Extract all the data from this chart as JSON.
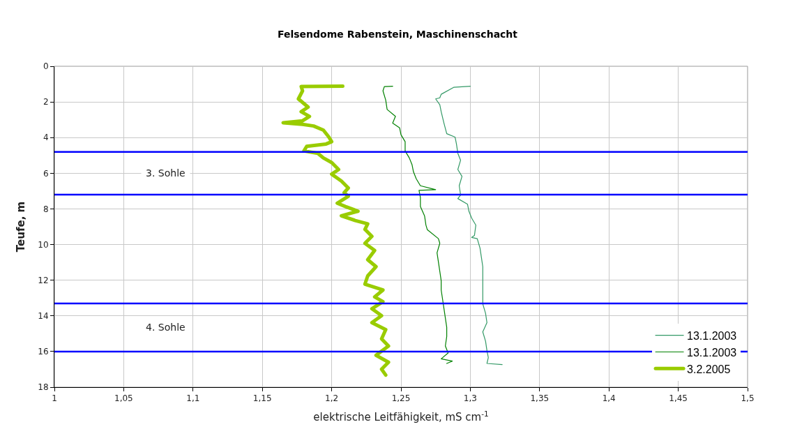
{
  "chart_data": {
    "type": "line",
    "title": "Felsendome Rabenstein, Maschinenschacht",
    "xlabel": "elektrische Leitfähigkeit, mS cm$^{-1}$",
    "ylabel": "Teufe, m",
    "xlim": [
      1,
      1.5
    ],
    "xticks": [
      1,
      {
        "value": 1.05,
        "label": "1,05"
      },
      {
        "value": 1.1,
        "label": "1,1"
      },
      {
        "value": 1.15,
        "label": "1,15"
      },
      {
        "value": 1.2,
        "label": "1,2"
      },
      {
        "value": 1.25,
        "label": "1,25"
      },
      {
        "value": 1.3,
        "label": "1,3"
      },
      {
        "value": 1.35,
        "label": "1,35"
      },
      {
        "value": 1.4,
        "label": "1,4"
      },
      {
        "value": 1.45,
        "label": "1,45"
      },
      {
        "value": 1.5,
        "label": "1,5"
      }
    ],
    "ylim": [
      18,
      0
    ],
    "yticks": [
      0,
      2,
      4,
      6,
      8,
      10,
      12,
      14,
      16,
      18
    ],
    "grid": true,
    "legend": "bottom right",
    "marker": "none",
    "line_style": "solid",
    "series": [
      {
        "name": "13.1.2003",
        "color": "#339966",
        "x": [
          1.3,
          1.288,
          1.279,
          1.278,
          1.275,
          1.278,
          1.279,
          1.281,
          1.283,
          1.289,
          1.29,
          1.291,
          1.293,
          1.291,
          1.294,
          1.292,
          1.293,
          1.291,
          1.298,
          1.299,
          1.301,
          1.304,
          1.303,
          1.301,
          1.305,
          1.307,
          1.308,
          1.309,
          1.309,
          1.309,
          1.309,
          1.309,
          1.311,
          1.312,
          1.309,
          1.311,
          1.312,
          1.313,
          1.312,
          1.323
        ],
        "values": [
          1.12,
          1.18,
          1.57,
          1.77,
          1.83,
          2.16,
          2.55,
          3.19,
          3.78,
          3.97,
          4.36,
          4.88,
          5.27,
          5.79,
          6.18,
          6.7,
          7.22,
          7.42,
          7.74,
          8.13,
          8.52,
          8.91,
          9.49,
          9.6,
          9.67,
          10.2,
          10.72,
          11.24,
          11.76,
          12.29,
          12.81,
          13.33,
          13.86,
          14.38,
          14.9,
          15.42,
          15.95,
          16.34,
          16.67,
          16.73
        ]
      },
      {
        "name": "13.1.2003",
        "color": "#008000",
        "x": [
          1.244,
          1.238,
          1.237,
          1.239,
          1.24,
          1.246,
          1.244,
          1.249,
          1.25,
          1.253,
          1.253,
          1.256,
          1.258,
          1.259,
          1.261,
          1.264,
          1.275,
          1.263,
          1.264,
          1.264,
          1.267,
          1.268,
          1.269,
          1.277,
          1.278,
          1.276,
          1.277,
          1.278,
          1.279,
          1.279,
          1.28,
          1.281,
          1.282,
          1.283,
          1.283,
          1.282,
          1.284,
          1.279,
          1.287,
          1.283
        ],
        "values": [
          1.12,
          1.14,
          1.38,
          1.9,
          2.42,
          2.81,
          3.19,
          3.45,
          3.84,
          4.23,
          4.75,
          5.14,
          5.53,
          5.92,
          6.31,
          6.7,
          6.92,
          6.96,
          7.35,
          7.87,
          8.39,
          8.91,
          9.17,
          9.67,
          9.93,
          10.46,
          10.98,
          11.5,
          12.03,
          12.55,
          13.07,
          13.59,
          14.12,
          14.64,
          15.16,
          15.69,
          16.08,
          16.41,
          16.54,
          16.67
        ]
      },
      {
        "name": "3.2.2005",
        "color": "#99cc00",
        "x": [
          1.208,
          1.178,
          1.179,
          1.176,
          1.183,
          1.178,
          1.184,
          1.179,
          1.165,
          1.179,
          1.187,
          1.194,
          1.198,
          1.2,
          1.196,
          1.182,
          1.18,
          1.19,
          1.194,
          1.2,
          1.205,
          1.2,
          1.207,
          1.212,
          1.209,
          1.212,
          1.204,
          1.21,
          1.219,
          1.207,
          1.217,
          1.226,
          1.224,
          1.229,
          1.224,
          1.231,
          1.226,
          1.232,
          1.226,
          1.224,
          1.237,
          1.231,
          1.237,
          1.229,
          1.236,
          1.229,
          1.239,
          1.236,
          1.241,
          1.232,
          1.241,
          1.236,
          1.239
        ],
        "values": [
          1.12,
          1.13,
          1.38,
          1.83,
          2.29,
          2.55,
          2.81,
          3.06,
          3.17,
          3.26,
          3.35,
          3.58,
          3.97,
          4.23,
          4.36,
          4.49,
          4.75,
          4.88,
          5.14,
          5.4,
          5.79,
          6.05,
          6.44,
          6.83,
          7.09,
          7.29,
          7.68,
          7.87,
          8.13,
          8.39,
          8.65,
          8.84,
          9.15,
          9.54,
          9.93,
          10.33,
          10.85,
          11.24,
          11.76,
          12.22,
          12.55,
          12.94,
          13.2,
          13.6,
          13.99,
          14.38,
          14.77,
          15.29,
          15.69,
          16.21,
          16.6,
          16.99,
          17.32
        ]
      }
    ],
    "ref_lines": [
      {
        "axis": "y",
        "value": 4.8,
        "color": "#0000ff"
      },
      {
        "axis": "y",
        "value": 7.2,
        "color": "#0000ff"
      },
      {
        "axis": "y",
        "value": 13.3,
        "color": "#0000ff"
      },
      {
        "axis": "y",
        "value": 16.0,
        "color": "#0000ff"
      }
    ],
    "annotations": [
      "3. Sohle",
      "4. Sohle"
    ]
  }
}
